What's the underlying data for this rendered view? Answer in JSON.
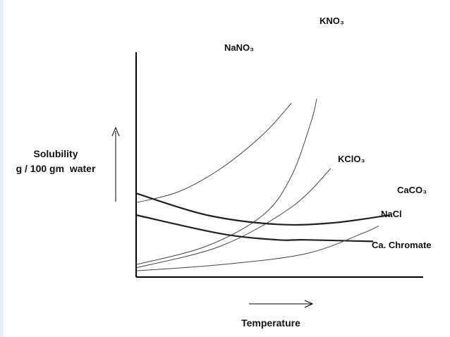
{
  "chart_data": {
    "type": "line",
    "title": "",
    "xlabel": "Temperature",
    "ylabel": [
      "Solubility",
      "g / 100 gm  water"
    ],
    "xlim": [
      0,
      100
    ],
    "ylim": [
      0,
      100
    ],
    "grid": false,
    "series": [
      {
        "name": "NaNO₃",
        "points": [
          [
            0,
            48
          ],
          [
            15,
            55
          ],
          [
            30,
            70
          ],
          [
            45,
            92
          ],
          [
            55,
            112
          ]
        ]
      },
      {
        "name": "KNO₃",
        "points": [
          [
            0,
            8
          ],
          [
            25,
            20
          ],
          [
            45,
            40
          ],
          [
            55,
            65
          ],
          [
            62,
            100
          ],
          [
            64,
            115
          ]
        ]
      },
      {
        "name": "KClO₃",
        "points": [
          [
            0,
            6
          ],
          [
            30,
            20
          ],
          [
            55,
            45
          ],
          [
            69,
            70
          ]
        ]
      },
      {
        "name": "CaCO₃",
        "points": [
          [
            0,
            54
          ],
          [
            25,
            40
          ],
          [
            50,
            34
          ],
          [
            70,
            35
          ],
          [
            90,
            40
          ]
        ]
      },
      {
        "name": "NaCl",
        "points": [
          [
            0,
            40
          ],
          [
            30,
            28
          ],
          [
            50,
            24
          ],
          [
            60,
            24
          ],
          [
            84,
            23
          ]
        ]
      },
      {
        "name": "Ca. Chromate",
        "points": [
          [
            0,
            4
          ],
          [
            30,
            8
          ],
          [
            60,
            15
          ],
          [
            80,
            28
          ],
          [
            86,
            33
          ]
        ]
      }
    ]
  }
}
